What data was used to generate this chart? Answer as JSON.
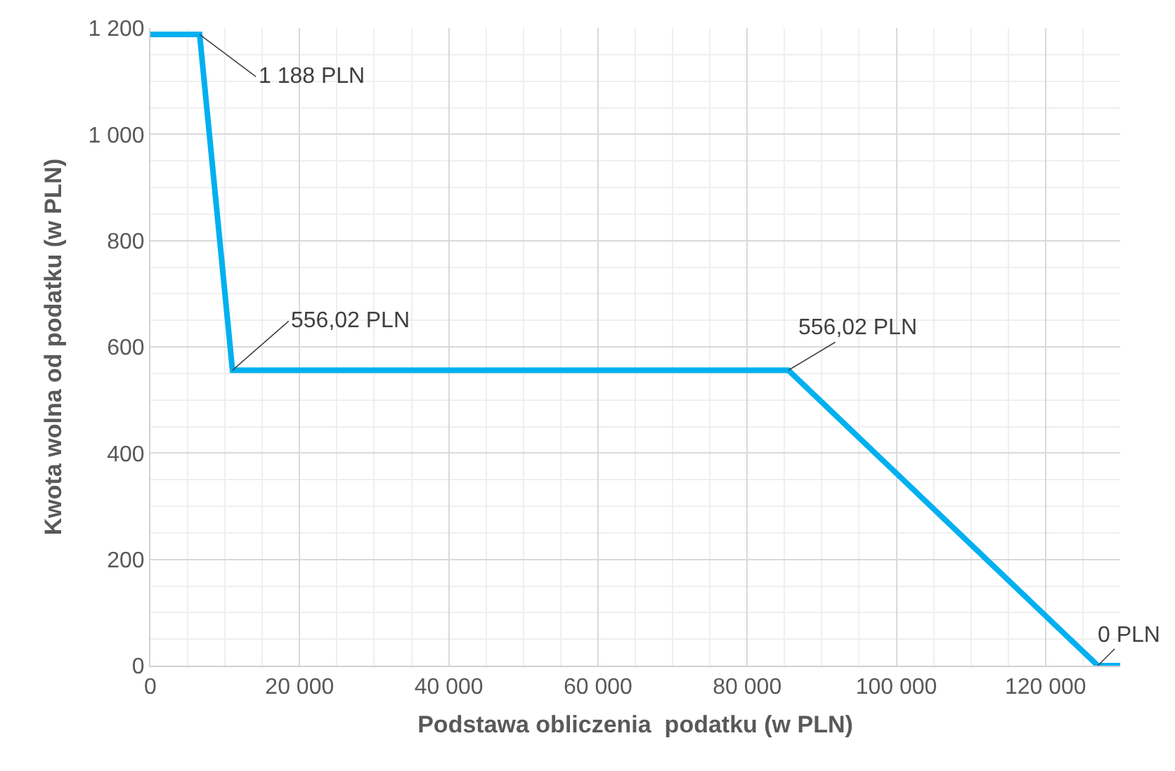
{
  "chart_data": {
    "type": "line",
    "xlabel": "Podstawa obliczenia  podatku (w PLN)",
    "ylabel": "Kwota wolna od podatku (w PLN)",
    "x": [
      0,
      6600,
      11000,
      85528,
      127000,
      130000
    ],
    "series": [
      {
        "color": "#00b0f0",
        "values": [
          1188,
          1188,
          556.02,
          556.02,
          0,
          0
        ]
      }
    ],
    "xlim": [
      0,
      130000
    ],
    "xticks": [
      0,
      {
        "value": 20000,
        "label": "20 000"
      },
      {
        "value": 40000,
        "label": "40 000"
      },
      {
        "value": 60000,
        "label": "60 000"
      },
      {
        "value": 80000,
        "label": "80 000"
      },
      {
        "value": 100000,
        "label": "100 000"
      },
      {
        "value": 120000,
        "label": "120 000"
      }
    ],
    "ylim": [
      0,
      1200
    ],
    "yticks": [
      0,
      200,
      400,
      600,
      800,
      {
        "value": 1000,
        "label": "1 000"
      },
      {
        "value": 1200,
        "label": "1 200"
      }
    ],
    "grid": true,
    "marker": "none",
    "line_style": "solid",
    "annotations": [
      {
        "text": "1 188 PLN",
        "x": 6600,
        "y": 1188
      },
      {
        "text": "556,02 PLN",
        "x": 11000,
        "y": 556.02
      },
      {
        "text": "556,02 PLN",
        "x": 85528,
        "y": 556.02
      },
      {
        "text": "0 PLN",
        "x": 127000,
        "y": 0
      }
    ]
  }
}
